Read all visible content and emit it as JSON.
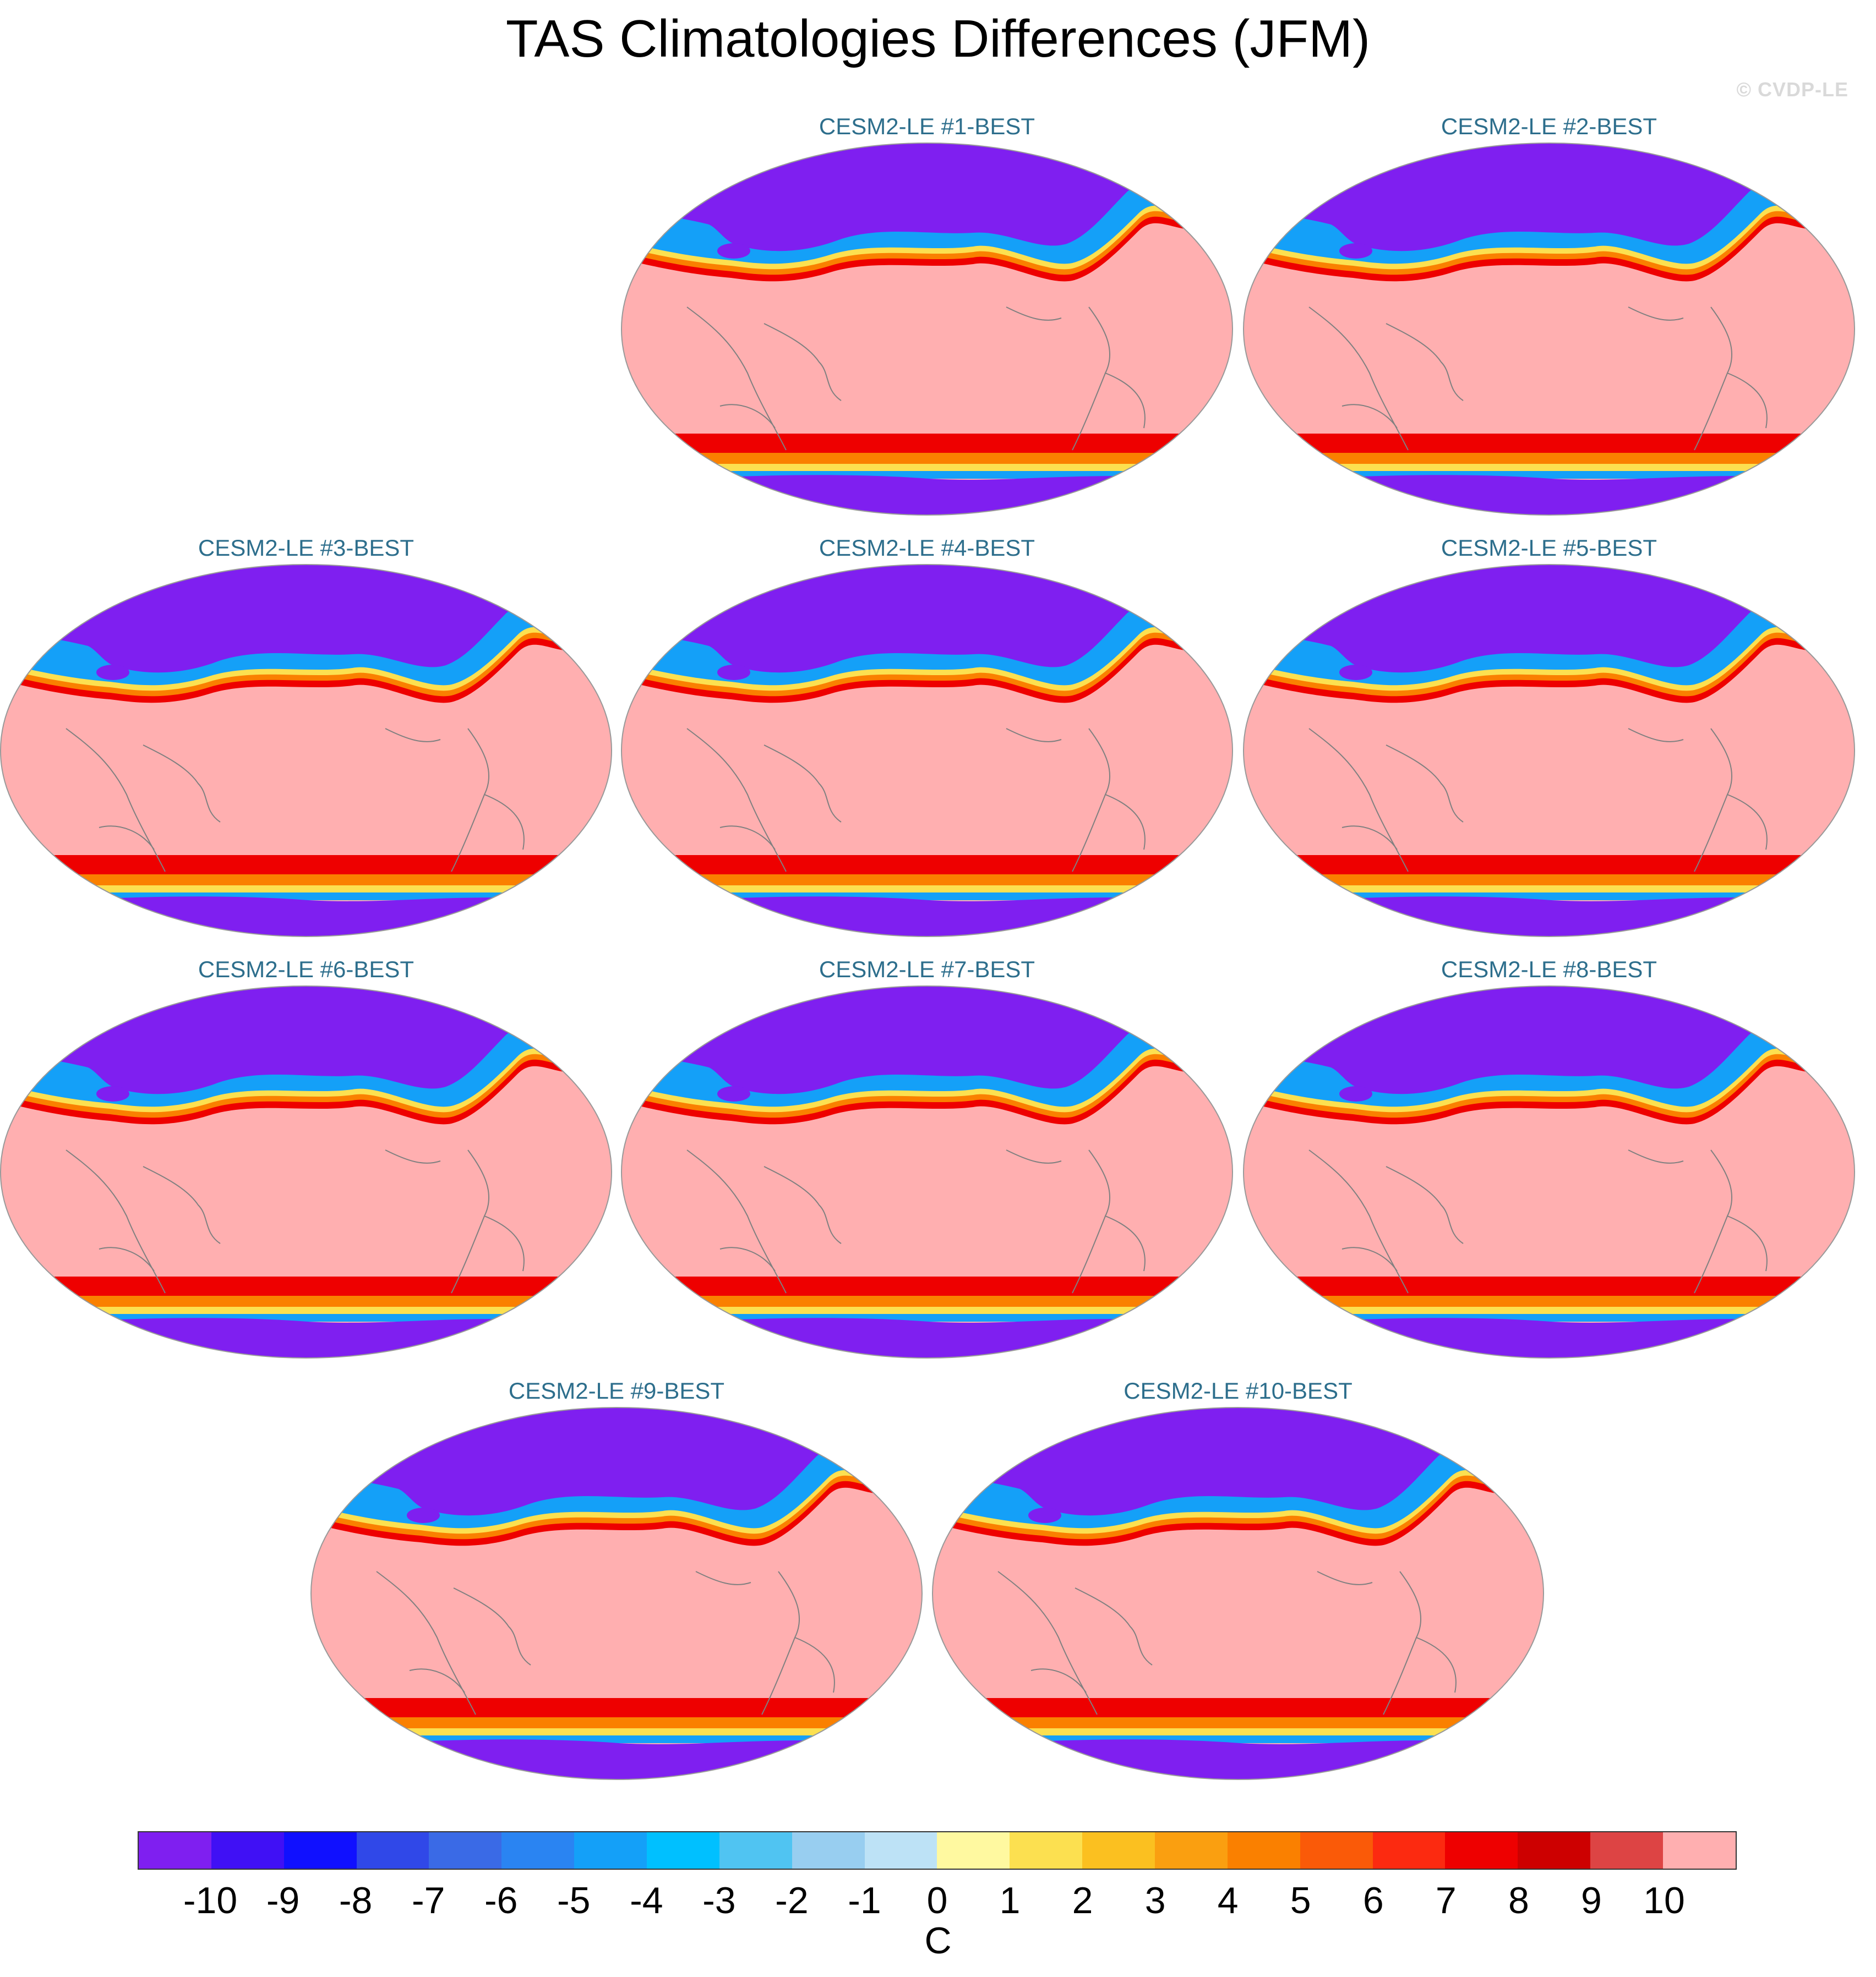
{
  "title": "TAS Climatologies Differences (JFM)",
  "watermark": "© CVDP-LE",
  "panels": [
    {
      "label": "CESM2-LE #1-BEST"
    },
    {
      "label": "CESM2-LE #2-BEST"
    },
    {
      "label": "CESM2-LE #3-BEST"
    },
    {
      "label": "CESM2-LE #4-BEST"
    },
    {
      "label": "CESM2-LE #5-BEST"
    },
    {
      "label": "CESM2-LE #6-BEST"
    },
    {
      "label": "CESM2-LE #7-BEST"
    },
    {
      "label": "CESM2-LE #8-BEST"
    },
    {
      "label": "CESM2-LE #9-BEST"
    },
    {
      "label": "CESM2-LE #10-BEST"
    }
  ],
  "colorbar": {
    "units": "C",
    "levels": [
      "-10",
      "-9",
      "-8",
      "-7",
      "-6",
      "-5",
      "-4",
      "-3",
      "-2",
      "-1",
      "0",
      "1",
      "2",
      "3",
      "4",
      "5",
      "6",
      "7",
      "8",
      "9",
      "10"
    ],
    "colors": [
      "#7f1ff0",
      "#4010f5",
      "#1010ff",
      "#3048e8",
      "#3a6ae6",
      "#2a84f2",
      "#14a0f8",
      "#00c0ff",
      "#50c4f2",
      "#98cef0",
      "#bde2f6",
      "#fff9a0",
      "#fce050",
      "#fbc020",
      "#fa9f10",
      "#fa8000",
      "#fa5a08",
      "#fc2a10",
      "#ee0000",
      "#cd0000",
      "#dd4444",
      "#ffafb0"
    ]
  },
  "map_colors": {
    "background": "#ffafb0",
    "arctic": "#7f1ff0",
    "antarctic": "#7f1ff0",
    "warm_band": "#ee0000",
    "orange_band": "#fa8000",
    "yellow_band": "#fce050",
    "blue_band": "#14a0f8",
    "coast": "#808080"
  }
}
